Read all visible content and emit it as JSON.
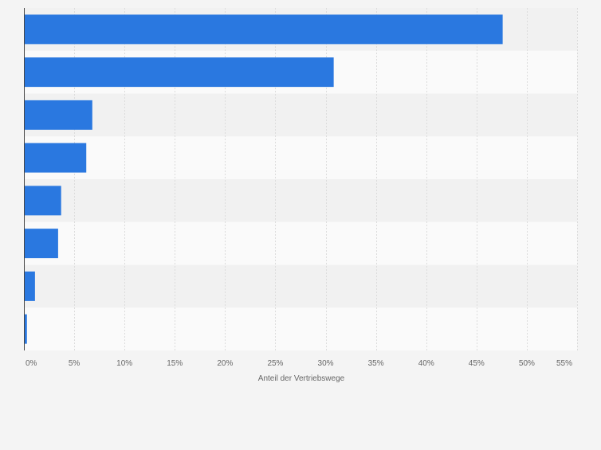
{
  "chart_data": {
    "type": "bar",
    "orientation": "horizontal",
    "categories": [
      "",
      "",
      "",
      "",
      "",
      "",
      "",
      ""
    ],
    "values": [
      47.6,
      30.8,
      6.8,
      6.2,
      3.7,
      3.4,
      1.1,
      0.3
    ],
    "xlabel": "Anteil der Vertriebswege",
    "ylabel": "",
    "xlim": [
      0,
      55
    ],
    "x_ticks": [
      {
        "value": 0,
        "label": "0%"
      },
      {
        "value": 5,
        "label": "5%"
      },
      {
        "value": 10,
        "label": "10%"
      },
      {
        "value": 15,
        "label": "15%"
      },
      {
        "value": 20,
        "label": "20%"
      },
      {
        "value": 25,
        "label": "25%"
      },
      {
        "value": 30,
        "label": "30%"
      },
      {
        "value": 35,
        "label": "35%"
      },
      {
        "value": 40,
        "label": "40%"
      },
      {
        "value": 45,
        "label": "45%"
      },
      {
        "value": 50,
        "label": "50%"
      },
      {
        "value": 55,
        "label": "55%"
      }
    ],
    "grid": true,
    "legend": "none",
    "colors": {
      "bar": "#2a78e0",
      "band_odd": "#f1f1f1",
      "band_even": "#fafafa",
      "grid": "#dcdcdc",
      "axis": "#444444",
      "text": "#666666"
    }
  }
}
